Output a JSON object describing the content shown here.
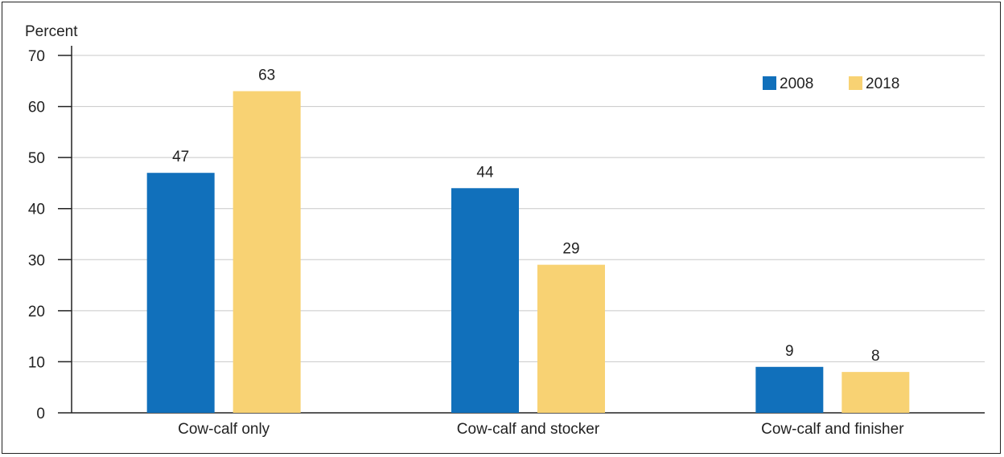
{
  "chart_data": {
    "type": "bar",
    "title": "",
    "xlabel": "",
    "ylabel": "Percent",
    "ylim": [
      0,
      70
    ],
    "yticks": [
      0,
      10,
      20,
      30,
      40,
      50,
      60,
      70
    ],
    "grid": true,
    "legend_position": "top-right",
    "categories": [
      "Cow-calf only",
      "Cow-calf and stocker",
      "Cow-calf and finisher"
    ],
    "series": [
      {
        "name": "2008",
        "color": "#1170bb",
        "values": [
          47,
          44,
          9
        ]
      },
      {
        "name": "2018",
        "color": "#f8d273",
        "values": [
          63,
          29,
          8
        ]
      }
    ]
  }
}
